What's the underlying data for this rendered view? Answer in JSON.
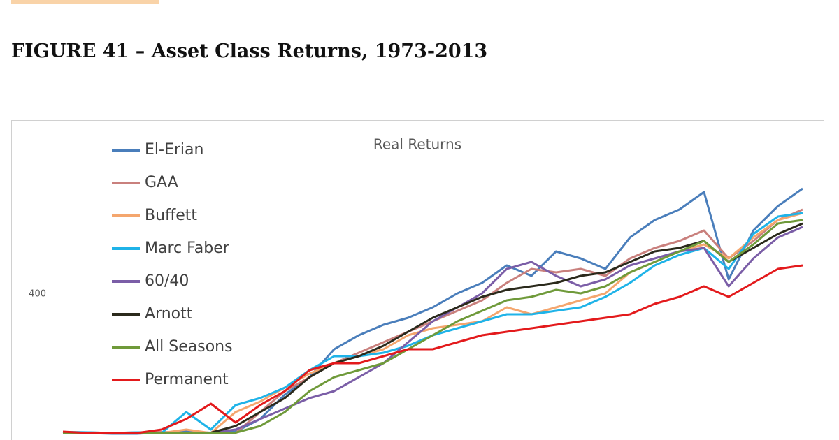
{
  "header": {
    "figure_title": "FIGURE 41 – Asset Class Returns, 1973-2013"
  },
  "chart_data": {
    "type": "line",
    "title": "Real Returns",
    "ylim": [
      0,
      800
    ],
    "yticks": [
      400
    ],
    "series": [
      {
        "name": "El-Erian",
        "color": "#4a7ebb",
        "values": [
          5,
          2,
          0,
          0,
          4,
          6,
          3,
          6,
          42,
          112,
          162,
          242,
          282,
          312,
          332,
          362,
          402,
          432,
          482,
          452,
          522,
          502,
          472,
          562,
          612,
          642,
          692,
          442,
          582,
          652,
          702
        ]
      },
      {
        "name": "GAA",
        "color": "#c9807d",
        "values": [
          5,
          4,
          2,
          4,
          5,
          2,
          2,
          2,
          62,
          122,
          162,
          202,
          232,
          262,
          292,
          322,
          352,
          382,
          432,
          472,
          462,
          472,
          452,
          502,
          532,
          552,
          582,
          502,
          552,
          612,
          642
        ]
      },
      {
        "name": "Buffett",
        "color": "#f4a66e",
        "values": [
          3,
          3,
          2,
          3,
          2,
          12,
          2,
          62,
          92,
          132,
          172,
          202,
          222,
          242,
          282,
          302,
          312,
          322,
          362,
          342,
          362,
          382,
          402,
          462,
          492,
          522,
          542,
          502,
          562,
          612,
          632
        ]
      },
      {
        "name": "Marc Faber",
        "color": "#1fb3e8",
        "values": [
          5,
          4,
          2,
          4,
          2,
          62,
          12,
          82,
          102,
          132,
          182,
          222,
          222,
          232,
          252,
          282,
          302,
          322,
          342,
          342,
          352,
          362,
          392,
          432,
          482,
          512,
          532,
          472,
          572,
          622,
          632
        ]
      },
      {
        "name": "60/40",
        "color": "#7b5ea7",
        "values": [
          3,
          3,
          2,
          3,
          3,
          2,
          3,
          12,
          42,
          72,
          102,
          122,
          162,
          202,
          262,
          322,
          362,
          402,
          472,
          492,
          452,
          422,
          442,
          482,
          502,
          522,
          532,
          422,
          502,
          562,
          592
        ]
      },
      {
        "name": "Arnott",
        "color": "#2b2a1c",
        "values": [
          3,
          3,
          2,
          3,
          3,
          2,
          3,
          22,
          62,
          102,
          162,
          202,
          222,
          252,
          292,
          332,
          362,
          392,
          412,
          422,
          432,
          452,
          462,
          492,
          522,
          532,
          552,
          492,
          532,
          572,
          602
        ]
      },
      {
        "name": "All Seasons",
        "color": "#6f9a3a",
        "values": [
          2,
          2,
          2,
          2,
          3,
          3,
          2,
          3,
          22,
          62,
          122,
          162,
          182,
          202,
          242,
          282,
          322,
          352,
          382,
          392,
          412,
          402,
          422,
          462,
          492,
          522,
          552,
          492,
          542,
          602,
          612
        ]
      },
      {
        "name": "Permanent",
        "color": "#e31a1c",
        "values": [
          6,
          2,
          2,
          2,
          12,
          42,
          86,
          32,
          82,
          122,
          182,
          202,
          202,
          222,
          242,
          242,
          262,
          282,
          292,
          302,
          312,
          322,
          332,
          342,
          372,
          392,
          422,
          392,
          432,
          472,
          482
        ]
      }
    ]
  }
}
